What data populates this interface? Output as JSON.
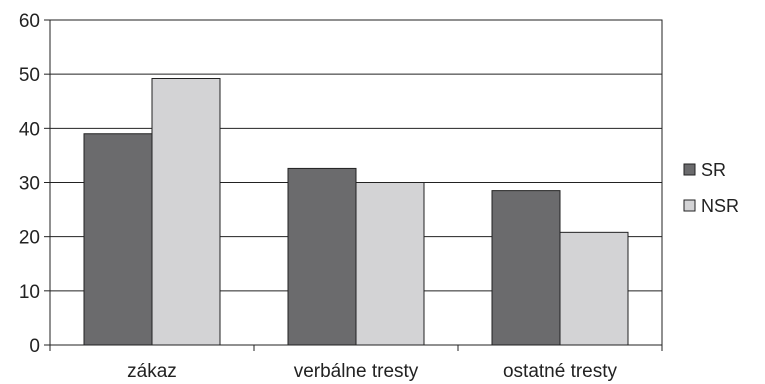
{
  "chart_data": {
    "type": "bar",
    "title": "",
    "xlabel": "",
    "ylabel": "",
    "categories": [
      "zákaz",
      "verbálne tresty",
      "ostatné tresty"
    ],
    "series": [
      {
        "name": "SR",
        "values": [
          39,
          32.6,
          28.5
        ],
        "color": "#6b6b6d"
      },
      {
        "name": "NSR",
        "values": [
          49.2,
          30,
          20.8
        ],
        "color": "#d3d3d5"
      }
    ],
    "ylim": [
      0,
      60
    ],
    "yticks": [
      "0",
      "10",
      "20",
      "30",
      "40",
      "50",
      "60"
    ],
    "grid": true,
    "legend_position": "right"
  }
}
